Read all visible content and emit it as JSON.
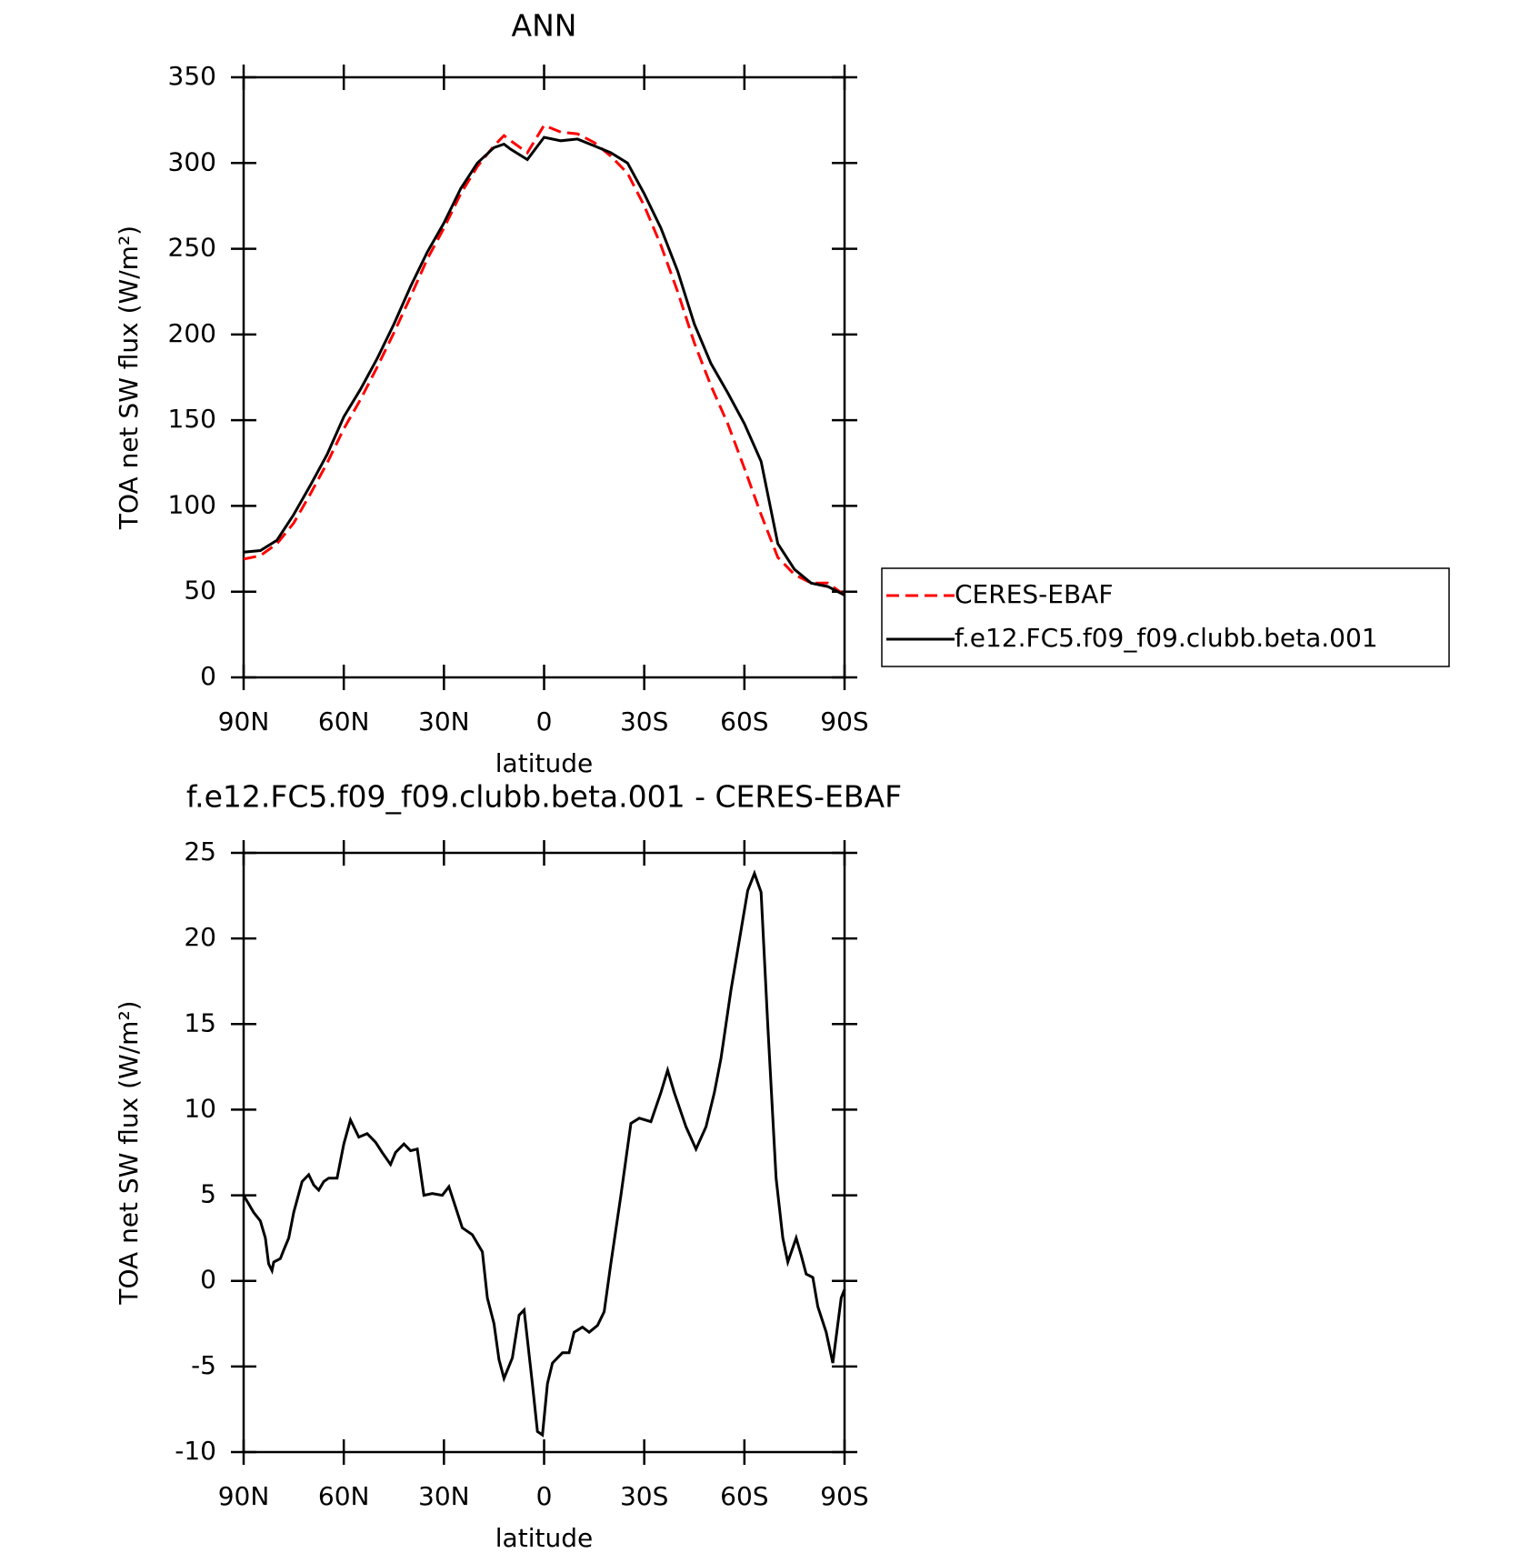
{
  "chart_data": [
    {
      "type": "line",
      "title": "ANN",
      "xlabel": "latitude",
      "ylabel": "TOA net SW flux (W/m²)",
      "x": [
        90,
        85,
        80,
        75,
        70,
        65,
        60,
        55,
        50,
        45,
        40,
        35,
        30,
        25,
        20,
        15,
        12,
        10,
        5,
        0,
        -5,
        -10,
        -15,
        -20,
        -25,
        -30,
        -35,
        -40,
        -45,
        -50,
        -55,
        -60,
        -65,
        -70,
        -75,
        -80,
        -85,
        -90
      ],
      "series": [
        {
          "name": "CERES-EBAF",
          "color": "#ff0000",
          "dash": true,
          "values": [
            69,
            71,
            78,
            90,
            107,
            125,
            145,
            162,
            181,
            201,
            222,
            244,
            262,
            282,
            298,
            310,
            316,
            313,
            306,
            322,
            318,
            317,
            312,
            304,
            294,
            275,
            252,
            225,
            195,
            170,
            148,
            122,
            95,
            70,
            60,
            55,
            55,
            48
          ]
        },
        {
          "name": "f.e12.FC5.f09_f09.clubb.beta.001",
          "color": "#000000",
          "dash": false,
          "values": [
            73,
            74,
            80,
            95,
            112,
            130,
            152,
            168,
            186,
            206,
            228,
            248,
            265,
            285,
            300,
            309,
            311,
            308,
            302,
            315,
            313,
            314,
            310,
            306,
            300,
            282,
            262,
            237,
            206,
            183,
            166,
            148,
            126,
            78,
            63,
            55,
            53,
            48
          ]
        }
      ],
      "xlim": [
        90,
        -90
      ],
      "ylim": [
        0,
        350
      ],
      "xticks": [
        {
          "value": 90,
          "label": "90N"
        },
        {
          "value": 60,
          "label": "60N"
        },
        {
          "value": 30,
          "label": "30N"
        },
        0,
        {
          "value": -30,
          "label": "30S"
        },
        {
          "value": -60,
          "label": "60S"
        },
        {
          "value": -90,
          "label": "90S"
        }
      ],
      "yticks": [
        0,
        50,
        100,
        150,
        200,
        250,
        300,
        350
      ],
      "legend": "right"
    },
    {
      "type": "line",
      "title": "f.e12.FC5.f09_f09.clubb.beta.001 - CERES-EBAF",
      "xlabel": "latitude",
      "ylabel": "TOA net SW flux (W/m²)",
      "x": [
        90,
        87,
        85,
        83.5,
        82.5,
        81.5,
        81,
        79,
        78,
        76.5,
        75,
        72.5,
        70.5,
        69,
        67.5,
        66,
        64.5,
        62,
        60,
        58,
        55.5,
        53,
        50.5,
        48.5,
        46,
        44.5,
        42,
        40,
        38,
        36,
        33.5,
        30.5,
        28.5,
        26.5,
        24.5,
        21.5,
        18.5,
        17,
        15,
        13.5,
        12,
        9.5,
        7.5,
        6,
        3.5,
        2,
        0.5,
        -1,
        -2.5,
        -5.5,
        -7.5,
        -9,
        -11.5,
        -13.5,
        -16,
        -18,
        -20,
        -23,
        -26,
        -28.5,
        -32,
        -35,
        -37,
        -39,
        -42.5,
        -45.5,
        -48.5,
        -51,
        -53,
        -56,
        -59,
        -61,
        -63,
        -65,
        -67,
        -69.5,
        -71.5,
        -73,
        -75.5,
        -77,
        -78.5,
        -80.5,
        -82,
        -84.5,
        -86.5,
        -89,
        -90
      ],
      "series": [
        {
          "color": "#000000",
          "dash": false,
          "values": [
            5.0,
            4.0,
            3.5,
            2.5,
            1.0,
            0.6,
            1.1,
            1.3,
            1.8,
            2.5,
            4.0,
            5.8,
            6.2,
            5.6,
            5.3,
            5.8,
            6.0,
            6.0,
            8.0,
            9.4,
            8.4,
            8.6,
            8.1,
            7.5,
            6.8,
            7.5,
            8.0,
            7.6,
            7.7,
            5.0,
            5.1,
            5.0,
            5.5,
            4.3,
            3.1,
            2.7,
            1.7,
            -1.0,
            -2.5,
            -4.6,
            -5.7,
            -4.5,
            -2.0,
            -1.7,
            -6.0,
            -8.8,
            -9.0,
            -6.0,
            -4.8,
            -4.2,
            -4.2,
            -3.0,
            -2.7,
            -3.0,
            -2.6,
            -1.8,
            1.0,
            5.0,
            9.2,
            9.5,
            9.3,
            11.0,
            12.3,
            11.0,
            9.0,
            7.7,
            9.0,
            11.0,
            13.0,
            17.0,
            20.5,
            22.8,
            23.8,
            22.7,
            15.0,
            6.0,
            2.5,
            1.1,
            2.5,
            1.5,
            0.4,
            0.2,
            -1.5,
            -3.0,
            -4.8,
            -1.0,
            -0.5
          ]
        }
      ],
      "xlim": [
        90,
        -90
      ],
      "ylim": [
        -10,
        25
      ],
      "xticks": [
        {
          "value": 90,
          "label": "90N"
        },
        {
          "value": 60,
          "label": "60N"
        },
        {
          "value": 30,
          "label": "30N"
        },
        0,
        {
          "value": -30,
          "label": "30S"
        },
        {
          "value": -60,
          "label": "60S"
        },
        {
          "value": -90,
          "label": "90S"
        }
      ],
      "yticks": [
        -10,
        -5,
        0,
        5,
        10,
        15,
        20,
        25
      ]
    }
  ]
}
